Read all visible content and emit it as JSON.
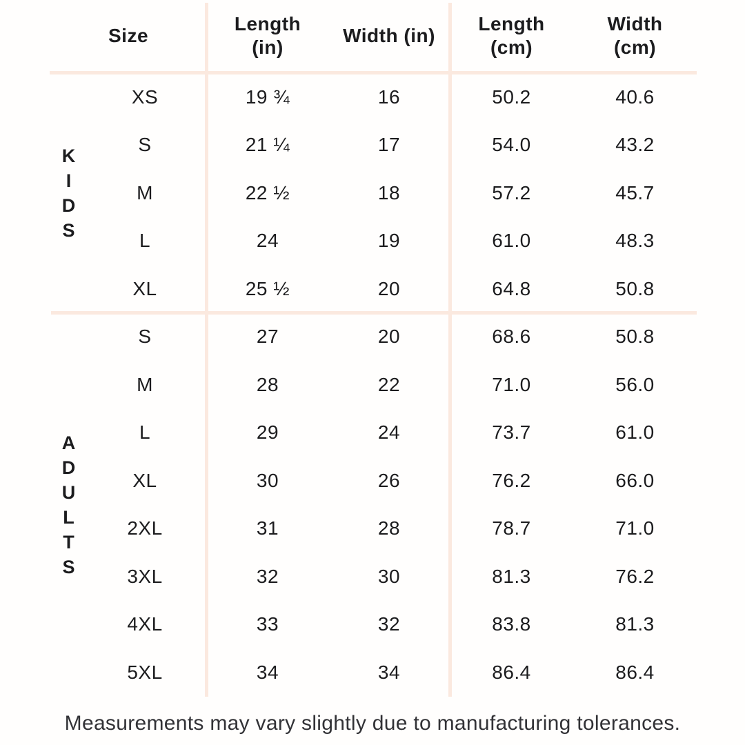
{
  "chart_data": {
    "type": "table",
    "columns": [
      "Size",
      "Length (in)",
      "Width (in)",
      "Length (cm)",
      "Width (cm)"
    ],
    "headers": {
      "size": "Size",
      "length_in": "Length\n(in)",
      "width_in": "Width (in)",
      "length_cm": "Length\n(cm)",
      "width_cm": "Width\n(cm)"
    },
    "sections": [
      {
        "group": "KIDS",
        "group_letters": "K\nI\nD\nS",
        "rows": [
          {
            "size": "XS",
            "length_in": "19 ¾",
            "width_in": "16",
            "length_cm": "50.2",
            "width_cm": "40.6"
          },
          {
            "size": "S",
            "length_in": "21 ¼",
            "width_in": "17",
            "length_cm": "54.0",
            "width_cm": "43.2"
          },
          {
            "size": "M",
            "length_in": "22 ½",
            "width_in": "18",
            "length_cm": "57.2",
            "width_cm": "45.7"
          },
          {
            "size": "L",
            "length_in": "24",
            "width_in": "19",
            "length_cm": "61.0",
            "width_cm": "48.3"
          },
          {
            "size": "XL",
            "length_in": "25 ½",
            "width_in": "20",
            "length_cm": "64.8",
            "width_cm": "50.8"
          }
        ]
      },
      {
        "group": "ADULTS",
        "group_letters": "A\nD\nU\nL\nT\nS",
        "rows": [
          {
            "size": "S",
            "length_in": "27",
            "width_in": "20",
            "length_cm": "68.6",
            "width_cm": "50.8"
          },
          {
            "size": "M",
            "length_in": "28",
            "width_in": "22",
            "length_cm": "71.0",
            "width_cm": "56.0"
          },
          {
            "size": "L",
            "length_in": "29",
            "width_in": "24",
            "length_cm": "73.7",
            "width_cm": "61.0"
          },
          {
            "size": "XL",
            "length_in": "30",
            "width_in": "26",
            "length_cm": "76.2",
            "width_cm": "66.0"
          },
          {
            "size": "2XL",
            "length_in": "31",
            "width_in": "28",
            "length_cm": "78.7",
            "width_cm": "71.0"
          },
          {
            "size": "3XL",
            "length_in": "32",
            "width_in": "30",
            "length_cm": "81.3",
            "width_cm": "76.2"
          },
          {
            "size": "4XL",
            "length_in": "33",
            "width_in": "32",
            "length_cm": "83.8",
            "width_cm": "81.3"
          },
          {
            "size": "5XL",
            "length_in": "34",
            "width_in": "34",
            "length_cm": "86.4",
            "width_cm": "86.4"
          }
        ]
      }
    ],
    "footnote": "Measurements may vary slightly due to manufacturing tolerances."
  },
  "colors": {
    "background": "#fffefd",
    "divider": "#fbe9df",
    "text": "#1c1c1e",
    "footnote_text": "#323236"
  }
}
